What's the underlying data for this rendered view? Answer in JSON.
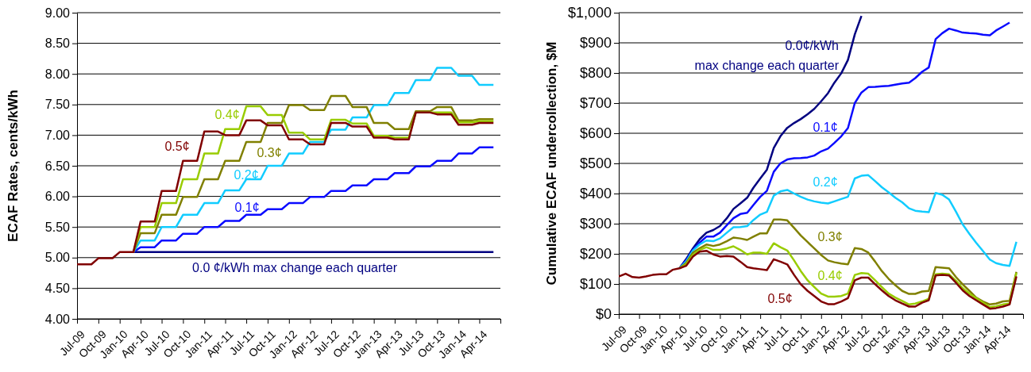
{
  "chart_data": [
    {
      "type": "line",
      "ylabel": "ECAF Rates, cents/kWh",
      "grid": "y",
      "x": [
        "2009-07",
        "2009-08",
        "2009-09",
        "2009-10",
        "2009-11",
        "2009-12",
        "2010-01",
        "2010-02",
        "2010-03",
        "2010-04",
        "2010-05",
        "2010-06",
        "2010-07",
        "2010-08",
        "2010-09",
        "2010-10",
        "2010-11",
        "2010-12",
        "2011-01",
        "2011-02",
        "2011-03",
        "2011-04",
        "2011-05",
        "2011-06",
        "2011-07",
        "2011-08",
        "2011-09",
        "2011-10",
        "2011-11",
        "2011-12",
        "2012-01",
        "2012-02",
        "2012-03",
        "2012-04",
        "2012-05",
        "2012-06",
        "2012-07",
        "2012-08",
        "2012-09",
        "2012-10",
        "2012-11",
        "2012-12",
        "2013-01",
        "2013-02",
        "2013-03",
        "2013-04",
        "2013-05",
        "2013-06",
        "2013-07",
        "2013-08",
        "2013-09",
        "2013-10",
        "2013-11",
        "2013-12",
        "2014-01",
        "2014-02",
        "2014-03",
        "2014-04",
        "2014-05",
        "2014-06"
      ],
      "xlim": [
        "2009-07",
        "2014-07"
      ],
      "xticks": [
        {
          "value": "2009-07",
          "label": "Jul-09"
        },
        {
          "value": "2009-10",
          "label": "Oct-09"
        },
        {
          "value": "2010-01",
          "label": "Jan-10"
        },
        {
          "value": "2010-04",
          "label": "Apr-10"
        },
        {
          "value": "2010-07",
          "label": "Jul-10"
        },
        {
          "value": "2010-10",
          "label": "Oct-10"
        },
        {
          "value": "2011-01",
          "label": "Jan-11"
        },
        {
          "value": "2011-04",
          "label": "Apr-11"
        },
        {
          "value": "2011-07",
          "label": "Jul-11"
        },
        {
          "value": "2011-10",
          "label": "Oct-11"
        },
        {
          "value": "2012-01",
          "label": "Jan-12"
        },
        {
          "value": "2012-04",
          "label": "Apr-12"
        },
        {
          "value": "2012-07",
          "label": "Jul-12"
        },
        {
          "value": "2012-10",
          "label": "Oct-12"
        },
        {
          "value": "2013-01",
          "label": "Jan-13"
        },
        {
          "value": "2013-04",
          "label": "Apr-13"
        },
        {
          "value": "2013-07",
          "label": "Jul-13"
        },
        {
          "value": "2013-10",
          "label": "Oct-13"
        },
        {
          "value": "2014-01",
          "label": "Jan-14"
        },
        {
          "value": "2014-04",
          "label": "Apr-14"
        },
        {
          "value": "2014-07",
          "label": null
        }
      ],
      "ylim": [
        4,
        9
      ],
      "yticks": [
        {
          "value": 4,
          "label": "4.00"
        },
        {
          "value": 4.5,
          "label": "4.50"
        },
        {
          "value": 5,
          "label": "5.00"
        },
        {
          "value": 5.5,
          "label": "5.50"
        },
        {
          "value": 6,
          "label": "6.00"
        },
        {
          "value": 6.5,
          "label": "6.50"
        },
        {
          "value": 7,
          "label": "7.00"
        },
        {
          "value": 7.5,
          "label": "7.50"
        },
        {
          "value": 8,
          "label": "8.00"
        },
        {
          "value": 8.5,
          "label": "8.50"
        },
        {
          "value": 9,
          "label": "9.00"
        }
      ],
      "series": [
        {
          "name": "0.0 ¢/kWh max change each quarter",
          "color": "#000080",
          "values": [
            null,
            null,
            null,
            null,
            null,
            null,
            null,
            null,
            5.09,
            5.09,
            5.09,
            5.09,
            5.09,
            5.09,
            5.09,
            5.09,
            5.09,
            5.09,
            5.09,
            5.09,
            5.09,
            5.09,
            5.09,
            5.09,
            5.09,
            5.09,
            5.09,
            5.09,
            5.09,
            5.09,
            5.09,
            5.09,
            5.09,
            5.09,
            5.09,
            5.09,
            5.09,
            5.09,
            5.09,
            5.09,
            5.09,
            5.09,
            5.09,
            5.09,
            5.09,
            5.09,
            5.09,
            5.09,
            5.09,
            5.09,
            5.09,
            5.09,
            5.09,
            5.09,
            5.09,
            5.09,
            5.09,
            5.09,
            5.09,
            5.09
          ]
        },
        {
          "name": "0.1¢",
          "color": "#0a0aff",
          "values": [
            null,
            null,
            null,
            null,
            null,
            null,
            null,
            null,
            5.09,
            5.17,
            5.17,
            5.17,
            5.28,
            5.28,
            5.28,
            5.39,
            5.39,
            5.39,
            5.5,
            5.5,
            5.5,
            5.6,
            5.6,
            5.6,
            5.7,
            5.7,
            5.7,
            5.79,
            5.79,
            5.79,
            5.89,
            5.89,
            5.89,
            5.99,
            5.99,
            5.99,
            6.09,
            6.09,
            6.09,
            6.18,
            6.18,
            6.18,
            6.28,
            6.28,
            6.28,
            6.38,
            6.38,
            6.38,
            6.49,
            6.49,
            6.49,
            6.58,
            6.58,
            6.58,
            6.7,
            6.7,
            6.7,
            6.8,
            6.8,
            6.8
          ]
        },
        {
          "name": "0.2¢",
          "color": "#11ccff",
          "values": [
            null,
            null,
            null,
            null,
            null,
            null,
            null,
            null,
            5.09,
            5.28,
            5.28,
            5.28,
            5.5,
            5.5,
            5.5,
            5.7,
            5.7,
            5.7,
            5.89,
            5.89,
            5.89,
            6.1,
            6.1,
            6.1,
            6.28,
            6.28,
            6.28,
            6.5,
            6.5,
            6.5,
            6.7,
            6.7,
            6.7,
            6.89,
            6.89,
            6.89,
            7.09,
            7.09,
            7.09,
            7.29,
            7.29,
            7.29,
            7.49,
            7.49,
            7.49,
            7.69,
            7.69,
            7.69,
            7.9,
            7.9,
            7.9,
            8.1,
            8.1,
            8.1,
            7.97,
            7.97,
            7.97,
            7.82,
            7.82,
            7.82
          ]
        },
        {
          "name": "0.3¢",
          "color": "#808000",
          "values": [
            null,
            null,
            null,
            null,
            null,
            null,
            null,
            null,
            5.09,
            5.4,
            5.4,
            5.4,
            5.7,
            5.7,
            5.7,
            5.99,
            5.99,
            5.99,
            6.28,
            6.28,
            6.28,
            6.58,
            6.58,
            6.58,
            6.89,
            6.89,
            6.89,
            7.2,
            7.2,
            7.2,
            7.49,
            7.49,
            7.49,
            7.41,
            7.41,
            7.41,
            7.64,
            7.64,
            7.64,
            7.46,
            7.46,
            7.46,
            7.2,
            7.2,
            7.2,
            7.1,
            7.1,
            7.1,
            7.39,
            7.39,
            7.39,
            7.46,
            7.46,
            7.46,
            7.24,
            7.24,
            7.24,
            7.26,
            7.26,
            7.26
          ]
        },
        {
          "name": "0.4¢",
          "color": "#99cc00",
          "values": [
            null,
            null,
            null,
            null,
            null,
            null,
            null,
            null,
            5.09,
            5.5,
            5.5,
            5.5,
            5.89,
            5.89,
            5.89,
            6.28,
            6.28,
            6.28,
            6.7,
            6.7,
            6.7,
            7.1,
            7.1,
            7.1,
            7.47,
            7.47,
            7.47,
            7.33,
            7.33,
            7.33,
            7.04,
            7.04,
            7.04,
            6.93,
            6.93,
            6.93,
            7.25,
            7.25,
            7.25,
            7.19,
            7.19,
            7.19,
            6.99,
            6.99,
            6.99,
            6.96,
            6.96,
            6.96,
            7.37,
            7.37,
            7.37,
            7.37,
            7.37,
            7.37,
            7.21,
            7.21,
            7.21,
            7.23,
            7.23,
            7.23
          ]
        },
        {
          "name": "0.5¢",
          "color": "#800000",
          "values": [
            4.89,
            4.89,
            4.89,
            4.99,
            4.99,
            4.99,
            5.09,
            5.09,
            5.09,
            5.59,
            5.59,
            5.59,
            6.09,
            6.09,
            6.09,
            6.58,
            6.58,
            6.58,
            7.06,
            7.06,
            7.06,
            7,
            7,
            7,
            7.24,
            7.24,
            7.24,
            7.16,
            7.16,
            7.16,
            6.93,
            6.93,
            6.93,
            6.85,
            6.85,
            6.85,
            7.2,
            7.2,
            7.2,
            7.14,
            7.14,
            7.14,
            6.96,
            6.96,
            6.96,
            6.93,
            6.93,
            6.93,
            7.37,
            7.37,
            7.37,
            7.34,
            7.34,
            7.34,
            7.17,
            7.17,
            7.17,
            7.2,
            7.2,
            7.2
          ]
        }
      ]
    },
    {
      "type": "line",
      "ylabel": "Cumulative ECAF undercollection, $M",
      "grid": "y",
      "x": [
        "2009-07",
        "2009-08",
        "2009-09",
        "2009-10",
        "2009-11",
        "2009-12",
        "2010-01",
        "2010-02",
        "2010-03",
        "2010-04",
        "2010-05",
        "2010-06",
        "2010-07",
        "2010-08",
        "2010-09",
        "2010-10",
        "2010-11",
        "2010-12",
        "2011-01",
        "2011-02",
        "2011-03",
        "2011-04",
        "2011-05",
        "2011-06",
        "2011-07",
        "2011-08",
        "2011-09",
        "2011-10",
        "2011-11",
        "2011-12",
        "2012-01",
        "2012-02",
        "2012-03",
        "2012-04",
        "2012-05",
        "2012-06",
        "2012-07",
        "2012-08",
        "2012-09",
        "2012-10",
        "2012-11",
        "2012-12",
        "2013-01",
        "2013-02",
        "2013-03",
        "2013-04",
        "2013-05",
        "2013-06",
        "2013-07",
        "2013-08",
        "2013-09",
        "2013-10",
        "2013-11",
        "2013-12",
        "2014-01",
        "2014-02",
        "2014-03",
        "2014-04",
        "2014-05",
        "2014-06"
      ],
      "xlim": [
        "2009-07",
        "2014-07"
      ],
      "xticks": [
        {
          "value": "2009-07",
          "label": "Jul-09"
        },
        {
          "value": "2009-10",
          "label": "Oct-09"
        },
        {
          "value": "2010-01",
          "label": "Jan-10"
        },
        {
          "value": "2010-04",
          "label": "Apr-10"
        },
        {
          "value": "2010-07",
          "label": "Jul-10"
        },
        {
          "value": "2010-10",
          "label": "Oct-10"
        },
        {
          "value": "2011-01",
          "label": "Jan-11"
        },
        {
          "value": "2011-04",
          "label": "Apr-11"
        },
        {
          "value": "2011-07",
          "label": "Jul-11"
        },
        {
          "value": "2011-10",
          "label": "Oct-11"
        },
        {
          "value": "2012-01",
          "label": "Jan-12"
        },
        {
          "value": "2012-04",
          "label": "Apr-12"
        },
        {
          "value": "2012-07",
          "label": "Jul-12"
        },
        {
          "value": "2012-10",
          "label": "Oct-12"
        },
        {
          "value": "2013-01",
          "label": "Jan-13"
        },
        {
          "value": "2013-04",
          "label": "Apr-13"
        },
        {
          "value": "2013-07",
          "label": "Jul-13"
        },
        {
          "value": "2013-10",
          "label": "Oct-13"
        },
        {
          "value": "2014-01",
          "label": "Jan-14"
        },
        {
          "value": "2014-04",
          "label": "Apr-14"
        },
        {
          "value": "2014-07",
          "label": null
        }
      ],
      "ylim": [
        0,
        1000
      ],
      "yticks": [
        {
          "value": 0,
          "label": "$0"
        },
        {
          "value": 100,
          "label": "$100"
        },
        {
          "value": 200,
          "label": "$200"
        },
        {
          "value": 300,
          "label": "$300"
        },
        {
          "value": 400,
          "label": "$400"
        },
        {
          "value": 500,
          "label": "$500"
        },
        {
          "value": 600,
          "label": "$600"
        },
        {
          "value": 700,
          "label": "$700"
        },
        {
          "value": 800,
          "label": "$800"
        },
        {
          "value": 900,
          "label": "$900"
        },
        {
          "value": 1000,
          "label": "$1,000"
        }
      ],
      "series": [
        {
          "name": "0.0¢/kWh max change each quarter",
          "color": "#000080",
          "values": [
            null,
            null,
            null,
            null,
            null,
            null,
            null,
            null,
            null,
            152,
            182,
            218,
            248,
            270,
            279,
            292,
            318,
            349,
            367,
            386,
            419,
            450,
            479,
            551,
            590,
            618,
            634,
            647,
            663,
            681,
            706,
            733,
            768,
            799,
            843,
            928,
            989,
            null,
            null,
            null,
            null,
            null,
            null,
            null,
            null,
            null,
            null,
            null,
            null,
            null,
            null,
            null,
            null,
            null,
            null,
            null,
            null,
            null,
            null,
            null
          ]
        },
        {
          "name": "0.1¢",
          "color": "#0a0aff",
          "values": [
            null,
            null,
            null,
            null,
            null,
            null,
            null,
            null,
            null,
            152,
            178,
            213,
            237,
            257,
            257,
            270,
            295,
            318,
            332,
            336,
            362,
            389,
            409,
            472,
            500,
            513,
            517,
            518,
            520,
            526,
            540,
            549,
            568,
            590,
            617,
            700,
            735,
            753,
            754,
            756,
            757,
            761,
            765,
            768,
            783,
            804,
            818,
            912,
            932,
            947,
            941,
            934,
            932,
            931,
            927,
            925,
            941,
            954,
            967,
            null
          ]
        },
        {
          "name": "0.2¢",
          "color": "#11ccff",
          "values": [
            null,
            null,
            null,
            null,
            null,
            null,
            null,
            null,
            null,
            152,
            174,
            211,
            231,
            244,
            242,
            251,
            270,
            288,
            289,
            292,
            312,
            330,
            339,
            393,
            407,
            412,
            400,
            389,
            380,
            374,
            370,
            367,
            374,
            382,
            389,
            450,
            459,
            461,
            441,
            421,
            404,
            386,
            371,
            351,
            343,
            340,
            338,
            402,
            396,
            380,
            340,
            298,
            266,
            237,
            209,
            181,
            169,
            163,
            160,
            240
          ]
        },
        {
          "name": "0.3¢",
          "color": "#808000",
          "values": [
            null,
            null,
            null,
            null,
            null,
            null,
            null,
            null,
            null,
            152,
            169,
            204,
            218,
            231,
            226,
            231,
            242,
            254,
            251,
            246,
            257,
            268,
            268,
            314,
            314,
            311,
            286,
            261,
            239,
            218,
            196,
            178,
            172,
            168,
            165,
            219,
            216,
            204,
            174,
            143,
            117,
            96,
            77,
            67,
            67,
            75,
            77,
            156,
            154,
            152,
            123,
            99,
            77,
            55,
            42,
            32,
            35,
            42,
            44,
            140
          ]
        },
        {
          "name": "0.4¢",
          "color": "#99cc00",
          "values": [
            null,
            null,
            null,
            null,
            null,
            null,
            null,
            null,
            null,
            152,
            165,
            196,
            213,
            222,
            213,
            213,
            218,
            225,
            213,
            198,
            204,
            204,
            200,
            235,
            222,
            211,
            178,
            143,
            112,
            90,
            68,
            58,
            58,
            60,
            68,
            130,
            136,
            134,
            112,
            90,
            68,
            55,
            44,
            32,
            35,
            42,
            51,
            132,
            134,
            132,
            111,
            86,
            68,
            53,
            38,
            23,
            26,
            32,
            35,
            137
          ]
        },
        {
          "name": "0.5¢",
          "color": "#800000",
          "values": [
            125,
            134,
            123,
            121,
            125,
            130,
            132,
            132,
            147,
            152,
            160,
            191,
            207,
            210,
            198,
            191,
            193,
            191,
            174,
            156,
            152,
            149,
            146,
            182,
            174,
            165,
            130,
            99,
            77,
            60,
            42,
            33,
            33,
            42,
            53,
            112,
            121,
            121,
            99,
            79,
            60,
            46,
            35,
            25,
            25,
            38,
            46,
            128,
            130,
            128,
            104,
            79,
            60,
            46,
            32,
            18,
            20,
            25,
            32,
            125
          ]
        }
      ]
    }
  ]
}
